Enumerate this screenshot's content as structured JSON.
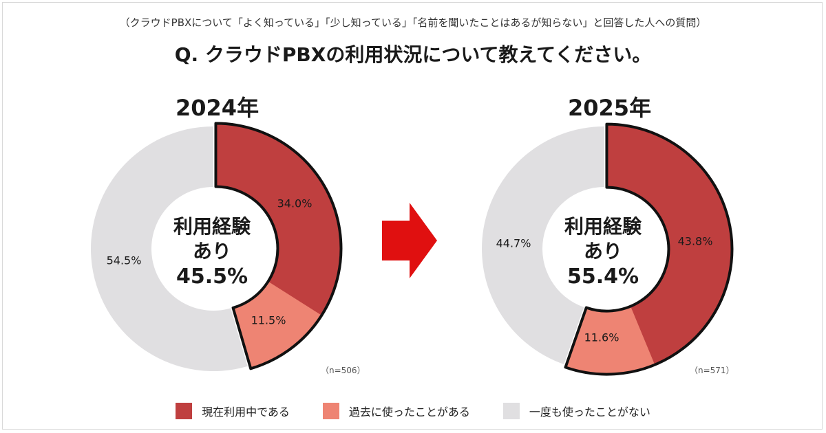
{
  "subtitle": "（クラウドPBXについて「よく知っている」「少し知っている」「名前を聞いたことはあるが知らない」と回答した人への質問）",
  "title": "Q. クラウドPBXの利用状況について教えてください。",
  "colors": {
    "current": "#bf3f3f",
    "past": "#ee8473",
    "never": "#e0dfe1",
    "arrow": "#e01010",
    "outline": "#111111"
  },
  "chart_data": [
    {
      "type": "pie",
      "variant": "donut",
      "title": "2024年",
      "n": "（n=506）",
      "center": {
        "line1": "利用経験",
        "line2": "あり",
        "line3": "45.5%"
      },
      "categories": [
        "現在利用中である",
        "過去に使ったことがある",
        "一度も使ったことがない"
      ],
      "values": [
        34.0,
        11.5,
        54.5
      ],
      "labels": [
        "34.0%",
        "11.5%",
        "54.5%"
      ]
    },
    {
      "type": "pie",
      "variant": "donut",
      "title": "2025年",
      "n": "（n=571）",
      "center": {
        "line1": "利用経験",
        "line2": "あり",
        "line3": "55.4%"
      },
      "categories": [
        "現在利用中である",
        "過去に使ったことがある",
        "一度も使ったことがない"
      ],
      "values": [
        43.8,
        11.6,
        44.7
      ],
      "labels": [
        "43.8%",
        "11.6%",
        "44.7%"
      ]
    }
  ],
  "legend": [
    {
      "label": "現在利用中である",
      "color_key": "current"
    },
    {
      "label": "過去に使ったことがある",
      "color_key": "past"
    },
    {
      "label": "一度も使ったことがない",
      "color_key": "never"
    }
  ]
}
